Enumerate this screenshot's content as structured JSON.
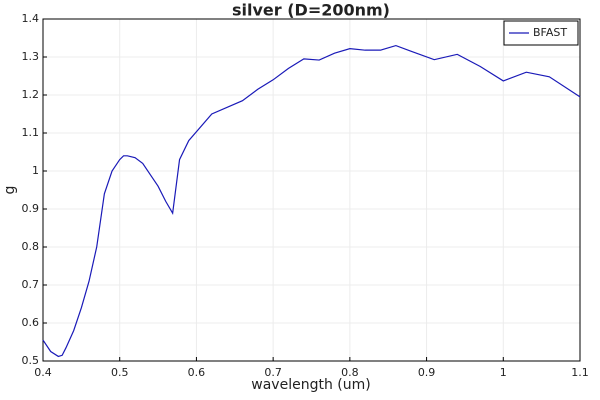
{
  "chart_data": {
    "type": "line",
    "title": "silver (D=200nm)",
    "xlabel": "wavelength (um)",
    "ylabel": "g",
    "x": [
      0.4,
      0.41,
      0.42,
      0.425,
      0.43,
      0.44,
      0.45,
      0.46,
      0.47,
      0.475,
      0.48,
      0.49,
      0.5,
      0.505,
      0.51,
      0.52,
      0.53,
      0.54,
      0.55,
      0.56,
      0.569,
      0.578,
      0.59,
      0.62,
      0.66,
      0.68,
      0.7,
      0.72,
      0.74,
      0.76,
      0.78,
      0.8,
      0.82,
      0.84,
      0.86,
      0.88,
      0.91,
      0.94,
      0.97,
      1.0,
      1.03,
      1.06,
      1.1
    ],
    "series": [
      {
        "name": "BFAST",
        "color": "#1a1ab8",
        "values": [
          0.555,
          0.525,
          0.512,
          0.515,
          0.535,
          0.58,
          0.64,
          0.71,
          0.8,
          0.87,
          0.94,
          1.0,
          1.03,
          1.04,
          1.04,
          1.035,
          1.02,
          0.99,
          0.96,
          0.92,
          0.889,
          1.03,
          1.08,
          1.15,
          1.185,
          1.215,
          1.24,
          1.27,
          1.295,
          1.292,
          1.31,
          1.322,
          1.318,
          1.318,
          1.33,
          1.315,
          1.293,
          1.307,
          1.275,
          1.237,
          1.26,
          1.248,
          1.195
        ]
      }
    ],
    "xlim": [
      0.4,
      1.1
    ],
    "xticks": [
      0.4,
      0.5,
      0.6,
      0.7,
      0.8,
      0.9,
      1,
      1.1
    ],
    "ylim": [
      0.5,
      1.4
    ],
    "yticks": [
      0.5,
      0.6,
      0.7,
      0.8,
      0.9,
      1,
      1.1,
      1.2,
      1.3,
      1.4
    ],
    "grid": true,
    "legend": "top-right"
  }
}
